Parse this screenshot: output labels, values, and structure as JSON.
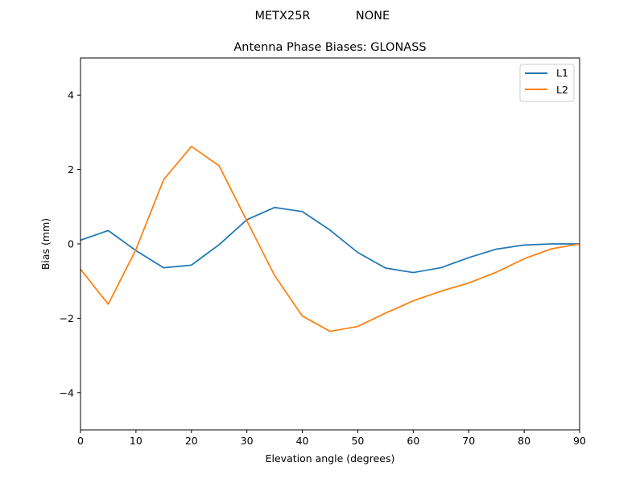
{
  "figure": {
    "suptitle_left": "METX25R",
    "suptitle_right": "NONE"
  },
  "chart_data": {
    "type": "line",
    "title": "Antenna Phase Biases: GLONASS",
    "xlabel": "Elevation angle (degrees)",
    "ylabel": "Bias (mm)",
    "xlim": [
      0,
      90
    ],
    "ylim": [
      -5,
      5
    ],
    "xticks": [
      0,
      10,
      20,
      30,
      40,
      50,
      60,
      70,
      80,
      90
    ],
    "yticks": [
      -4,
      -2,
      0,
      2,
      4
    ],
    "ytick_labels": [
      "−4",
      "−2",
      "0",
      "2",
      "4"
    ],
    "grid": false,
    "legend_position": "top-right",
    "x": [
      0,
      5,
      10,
      15,
      20,
      25,
      30,
      35,
      40,
      45,
      50,
      55,
      60,
      65,
      70,
      75,
      80,
      85,
      90
    ],
    "series": [
      {
        "name": "L1",
        "color": "#1f77b4",
        "values": [
          0.1,
          0.36,
          -0.18,
          -0.64,
          -0.57,
          -0.02,
          0.65,
          0.98,
          0.87,
          0.37,
          -0.23,
          -0.65,
          -0.77,
          -0.64,
          -0.37,
          -0.14,
          -0.03,
          0.0,
          0.0
        ]
      },
      {
        "name": "L2",
        "color": "#ff7f0e",
        "values": [
          -0.68,
          -1.62,
          -0.15,
          1.73,
          2.62,
          2.1,
          0.62,
          -0.85,
          -1.94,
          -2.35,
          -2.22,
          -1.86,
          -1.53,
          -1.27,
          -1.05,
          -0.76,
          -0.4,
          -0.13,
          0.0
        ]
      }
    ]
  }
}
